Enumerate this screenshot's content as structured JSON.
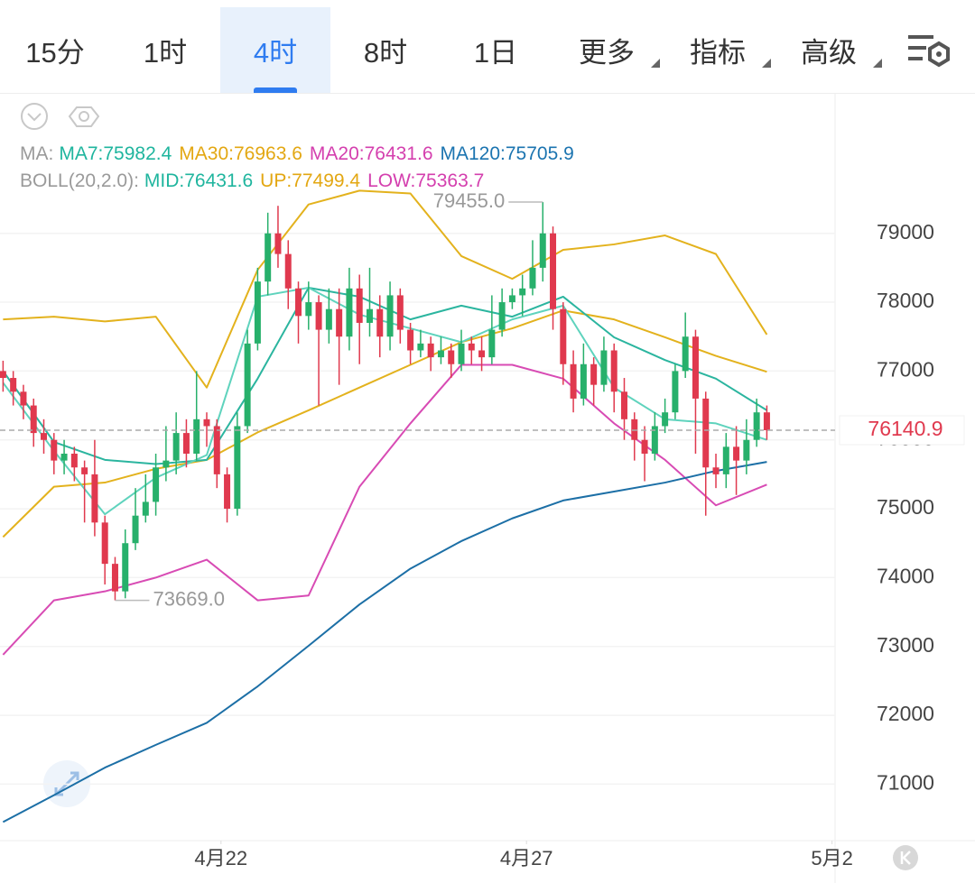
{
  "tabs": [
    {
      "label": "15分"
    },
    {
      "label": "1时"
    },
    {
      "label": "4时"
    },
    {
      "label": "8时"
    },
    {
      "label": "1日"
    },
    {
      "label": "更多",
      "menu": true
    },
    {
      "label": "指标",
      "menu": true
    },
    {
      "label": "高级",
      "menu": true
    }
  ],
  "active_tab": 2,
  "indicators": [
    {
      "label": "MA:",
      "items": [
        {
          "text": "MA7:75982.4",
          "color": "#1fb59e"
        },
        {
          "text": "MA30:76963.6",
          "color": "#e3a712"
        },
        {
          "text": "MA20:76431.6",
          "color": "#d43fae"
        },
        {
          "text": "MA120:75705.9",
          "color": "#1b74b0"
        }
      ]
    },
    {
      "label": "BOLL(20,2.0):",
      "items": [
        {
          "text": "MID:76431.6",
          "color": "#1fb59e"
        },
        {
          "text": "UP:77499.4",
          "color": "#e3a712"
        },
        {
          "text": "LOW:75363.7",
          "color": "#d43fae"
        }
      ]
    }
  ],
  "chart_data": {
    "type": "candlestick",
    "up_color": "#27b06b",
    "down_color": "#e0394e",
    "open": [
      77000,
      76900,
      76700,
      76500,
      76100,
      76000,
      75700,
      75800,
      75600,
      75500,
      74800,
      74200,
      73800,
      74500,
      74900,
      75100,
      75600,
      75700,
      76100,
      75800,
      76300,
      76200,
      75500,
      75000,
      76200,
      77400,
      78300,
      79000,
      78700,
      78200,
      77800,
      78000,
      77600,
      77900,
      77500,
      78200,
      77700,
      77900,
      77500,
      78100,
      77600,
      77300,
      77400,
      77200,
      77300,
      77100,
      77400,
      77300,
      77200,
      77600,
      78000,
      78100,
      78200,
      78500,
      79000,
      77900,
      77100,
      76600,
      77100,
      76800,
      77300,
      76700,
      76300,
      76000,
      75800,
      76200,
      76400,
      77000,
      77500,
      76600,
      75600,
      75500,
      75900,
      75700,
      76000,
      76400
    ],
    "high": [
      77150,
      77000,
      76800,
      76600,
      76300,
      76100,
      76000,
      75900,
      75700,
      76000,
      74900,
      74300,
      74700,
      75300,
      75500,
      75800,
      76200,
      76400,
      76300,
      77000,
      76400,
      76300,
      75600,
      76400,
      77600,
      78500,
      79300,
      79400,
      78900,
      78300,
      78300,
      78100,
      78200,
      78200,
      78500,
      78400,
      78500,
      78100,
      78300,
      78200,
      77700,
      77600,
      77500,
      77500,
      77400,
      77600,
      77500,
      77500,
      78100,
      78200,
      78200,
      78400,
      78900,
      79455,
      79100,
      78000,
      77300,
      77400,
      77200,
      77500,
      77400,
      76900,
      76400,
      76200,
      76400,
      76600,
      77100,
      77850,
      77600,
      76700,
      75800,
      76100,
      76200,
      76300,
      76600,
      76500
    ],
    "low": [
      76700,
      76500,
      76300,
      75900,
      75800,
      75500,
      75500,
      75400,
      74800,
      74600,
      73900,
      73669,
      73700,
      74400,
      74800,
      74900,
      75400,
      75500,
      75600,
      75700,
      75900,
      75300,
      74800,
      74900,
      76100,
      77300,
      78100,
      78500,
      77900,
      77400,
      77600,
      76500,
      77400,
      76800,
      77300,
      77100,
      77500,
      77200,
      77300,
      77400,
      77100,
      77200,
      77000,
      77100,
      76900,
      77000,
      77100,
      77000,
      77100,
      77500,
      77900,
      77800,
      78100,
      78300,
      77600,
      76800,
      76400,
      76500,
      76500,
      76700,
      76400,
      76000,
      75700,
      75400,
      75700,
      76100,
      76300,
      76900,
      75800,
      74900,
      75300,
      75300,
      75200,
      75500,
      75900,
      76000
    ],
    "close": [
      76900,
      76700,
      76500,
      76100,
      76000,
      75700,
      75800,
      75600,
      75500,
      74800,
      74200,
      73800,
      74500,
      74900,
      75100,
      75600,
      75700,
      76100,
      75800,
      76300,
      76200,
      75500,
      75000,
      76200,
      77400,
      78300,
      79000,
      78700,
      78200,
      77800,
      78000,
      77600,
      77900,
      77500,
      78200,
      77700,
      77900,
      77500,
      78100,
      77600,
      77300,
      77400,
      77200,
      77300,
      77100,
      77400,
      77300,
      77200,
      77600,
      78000,
      78100,
      78200,
      78500,
      79000,
      77900,
      77100,
      76600,
      77100,
      76800,
      77300,
      76700,
      76300,
      76000,
      75800,
      76200,
      76400,
      77000,
      77500,
      76600,
      75600,
      75500,
      75900,
      75700,
      76000,
      76400,
      76140.9
    ],
    "series": [
      {
        "color": "#e3b21d",
        "x": [
          0,
          5,
          10,
          15,
          20,
          25,
          30,
          35,
          40,
          45,
          50,
          55,
          60,
          65,
          70,
          75
        ],
        "values": [
          77750,
          77790,
          77720,
          77790,
          76760,
          78470,
          79420,
          79620,
          79580,
          78670,
          78340,
          78760,
          78840,
          78970,
          78700,
          77530
        ]
      },
      {
        "color": "#e3b21d",
        "x": [
          0,
          5,
          10,
          15,
          20,
          25,
          30,
          35,
          40,
          45,
          50,
          55,
          60,
          65,
          70,
          75
        ],
        "values": [
          74590,
          75320,
          75380,
          75580,
          75710,
          76110,
          76430,
          76760,
          77090,
          77420,
          77620,
          77880,
          77750,
          77490,
          77220,
          76990
        ]
      },
      {
        "color": "#d84bb4",
        "x": [
          0,
          5,
          10,
          15,
          20,
          25,
          30,
          35,
          40,
          45,
          50,
          55,
          60,
          65,
          70,
          75
        ],
        "values": [
          72880,
          73670,
          73800,
          74000,
          74260,
          73670,
          73740,
          75320,
          76240,
          77090,
          77090,
          76890,
          76240,
          75710,
          75050,
          75350
        ]
      },
      {
        "color": "#2bb59f",
        "x": [
          0,
          5,
          10,
          15,
          20,
          25,
          30,
          35,
          40,
          45,
          50,
          55,
          60,
          65,
          70,
          75
        ],
        "values": [
          77000,
          75970,
          75710,
          75650,
          75710,
          76890,
          78210,
          78080,
          77750,
          77950,
          77790,
          78080,
          77490,
          77160,
          76890,
          76430
        ]
      },
      {
        "color": "#5fd3bd",
        "x": [
          0,
          5,
          10,
          15,
          20,
          25,
          30,
          35,
          40,
          45,
          50,
          55,
          60,
          65,
          70,
          75
        ],
        "values": [
          76830,
          75840,
          74920,
          75450,
          75780,
          78080,
          78210,
          77820,
          77620,
          77420,
          77750,
          77950,
          76760,
          76300,
          76240,
          76000
        ]
      },
      {
        "color": "#1c6fa6",
        "x": [
          0,
          5,
          10,
          15,
          20,
          25,
          30,
          35,
          40,
          45,
          50,
          55,
          60,
          65,
          70,
          75
        ],
        "values": [
          70450,
          70840,
          71240,
          71570,
          71890,
          72420,
          73010,
          73610,
          74130,
          74530,
          74860,
          75120,
          75250,
          75380,
          75550,
          75680
        ]
      }
    ],
    "annotations": [
      {
        "value": 79455,
        "label": "79455.0"
      },
      {
        "value": 73669,
        "label": "73669.0"
      }
    ],
    "last_price": 76140.9,
    "xlim": [
      -0.3,
      81.7
    ],
    "xticks": [
      {
        "value": 21.4,
        "label": "4月22"
      },
      {
        "value": 51.4,
        "label": "4月27"
      },
      {
        "value": 81.4,
        "label": "5月2"
      }
    ],
    "ylim": [
      70180,
      81040
    ],
    "yticks": [
      71000,
      72000,
      73000,
      74000,
      75000,
      76000,
      77000,
      78000,
      79000
    ],
    "grid": true
  }
}
